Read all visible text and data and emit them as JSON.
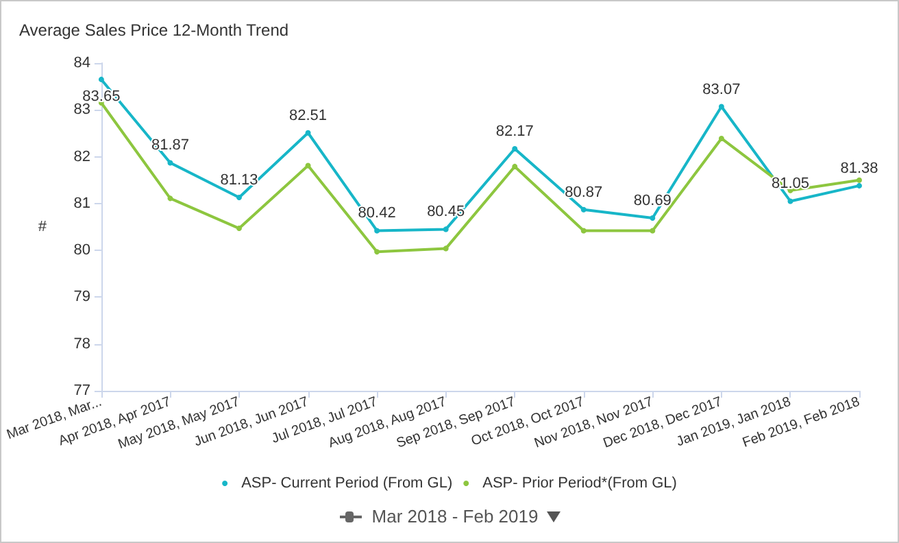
{
  "chart_data": {
    "type": "line",
    "title": "Average Sales Price 12-Month Trend",
    "ylabel": "#",
    "categories": [
      "Mar 2018, Mar...",
      "Apr 2018, Apr 2017",
      "May 2018, May 2017",
      "Jun 2018, Jun 2017",
      "Jul 2018, Jul 2017",
      "Aug 2018, Aug 2017",
      "Sep 2018, Sep 2017",
      "Oct 2018, Oct 2017",
      "Nov 2018, Nov 2017",
      "Dec 2018, Dec 2017",
      "Jan 2019, Jan 2018",
      "Feb 2019, Feb 2018"
    ],
    "series": [
      {
        "name": "ASP- Current Period (From GL)",
        "color": "#17b6c8",
        "values": [
          83.65,
          81.87,
          81.13,
          82.51,
          80.42,
          80.45,
          82.17,
          80.87,
          80.69,
          83.07,
          81.05,
          81.38
        ],
        "value_labels": [
          "83.65",
          "81.87",
          "81.13",
          "82.51",
          "80.42",
          "80.45",
          "82.17",
          "80.87",
          "80.69",
          "83.07",
          "81.05",
          "81.38"
        ]
      },
      {
        "name": "ASP- Prior Period*(From GL)",
        "color": "#8dc63f",
        "values": [
          83.15,
          81.11,
          80.47,
          81.81,
          79.97,
          80.04,
          81.79,
          80.42,
          80.42,
          82.39,
          81.28,
          81.5
        ]
      }
    ],
    "ylim": [
      77,
      84
    ],
    "yticks": [
      77,
      78,
      79,
      80,
      81,
      82,
      83,
      84
    ],
    "grid": false,
    "legend": "bottom",
    "marker": "circle",
    "line_style": "solid",
    "annotations": [
      "Mar 2018 - Feb 2019"
    ]
  }
}
